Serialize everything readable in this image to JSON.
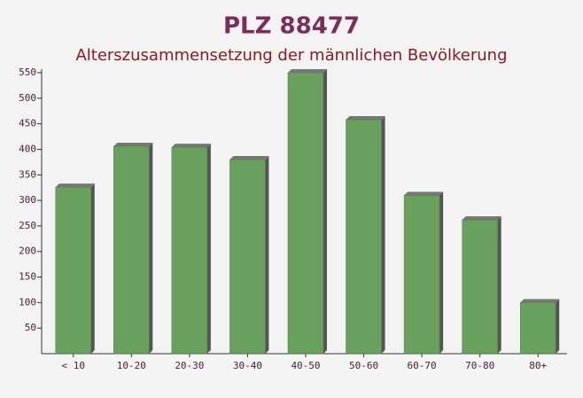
{
  "chart_data": {
    "type": "bar",
    "title": "PLZ 88477",
    "subtitle": "Alterszusammensetzung der männlichen Bevölkerung",
    "categories": [
      "< 10",
      "10-20",
      "20-30",
      "30-40",
      "40-50",
      "50-60",
      "60-70",
      "70-80",
      "80+"
    ],
    "values": [
      326,
      406,
      404,
      380,
      550,
      458,
      310,
      262,
      100
    ],
    "color": "#6aa05e",
    "ylim": [
      0,
      550
    ],
    "yticks": [
      50,
      100,
      150,
      200,
      250,
      300,
      350,
      400,
      450,
      500,
      550
    ]
  }
}
